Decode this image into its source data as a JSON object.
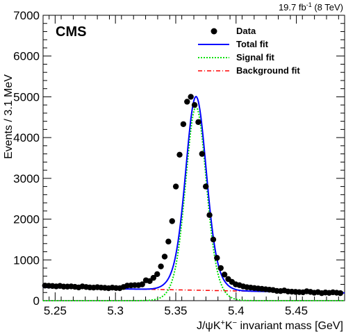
{
  "header": {
    "experiment": "CMS",
    "lumi_value": "19.7 fb",
    "lumi_exp": "-1",
    "lumi_energy": " (8 TeV)"
  },
  "chart_data": {
    "type": "scatter",
    "ylabel": "Events / 3.1 MeV",
    "xlabel": {
      "prefix": "J/ψK",
      "sup1": "+",
      "mid": "K",
      "sup2": "−",
      "suffix": " invariant mass [GeV]"
    },
    "xlim": [
      5.24,
      5.49
    ],
    "ylim": [
      0,
      7000
    ],
    "xticks": [
      5.25,
      5.3,
      5.35,
      5.4,
      5.45
    ],
    "xtick_labels": [
      "5.25",
      "5.3",
      "5.35",
      "5.4",
      "5.45"
    ],
    "yticks": [
      0,
      1000,
      2000,
      3000,
      4000,
      5000,
      6000,
      7000
    ],
    "ytick_labels": [
      "0",
      "1000",
      "2000",
      "3000",
      "4000",
      "5000",
      "6000",
      "7000"
    ],
    "legend": {
      "position": "top-right",
      "entries": [
        {
          "name": "Data",
          "style": "marker",
          "color": "#000000"
        },
        {
          "name": "Total fit",
          "style": "solid",
          "color": "#0000ff"
        },
        {
          "name": "Signal fit",
          "style": "dotted",
          "color": "#00e000"
        },
        {
          "name": "Background fit",
          "style": "dashdot",
          "color": "#ff0000"
        }
      ]
    },
    "data": {
      "x": [
        5.2416,
        5.2447,
        5.2478,
        5.2509,
        5.254,
        5.2571,
        5.2602,
        5.2633,
        5.2664,
        5.2695,
        5.2726,
        5.2757,
        5.2788,
        5.2819,
        5.285,
        5.2881,
        5.2912,
        5.2943,
        5.2974,
        5.3005,
        5.3036,
        5.3067,
        5.3098,
        5.3129,
        5.316,
        5.3191,
        5.3222,
        5.3253,
        5.3284,
        5.3315,
        5.3346,
        5.3377,
        5.3408,
        5.3439,
        5.347,
        5.3501,
        5.3532,
        5.3563,
        5.3594,
        5.3625,
        5.3656,
        5.3687,
        5.3718,
        5.3749,
        5.378,
        5.3811,
        5.3842,
        5.3873,
        5.3904,
        5.3935,
        5.3966,
        5.3997,
        5.4028,
        5.4059,
        5.409,
        5.4121,
        5.4152,
        5.4183,
        5.4214,
        5.4245,
        5.4276,
        5.4307,
        5.4338,
        5.4369,
        5.44,
        5.4431,
        5.4462,
        5.4493,
        5.4524,
        5.4555,
        5.4586,
        5.4617,
        5.4648,
        5.4679,
        5.471,
        5.4741,
        5.4772,
        5.4803,
        5.4834,
        5.4865
      ],
      "y": [
        370,
        365,
        360,
        350,
        362,
        345,
        345,
        350,
        340,
        325,
        350,
        335,
        325,
        320,
        330,
        320,
        315,
        305,
        320,
        310,
        305,
        335,
        370,
        375,
        380,
        380,
        400,
        500,
        480,
        560,
        650,
        840,
        1080,
        1450,
        1950,
        2800,
        3580,
        4330,
        4880,
        5000,
        4800,
        4380,
        3600,
        2800,
        2100,
        1500,
        1050,
        800,
        640,
        530,
        460,
        400,
        380,
        350,
        330,
        320,
        310,
        300,
        290,
        280,
        270,
        260,
        240,
        235,
        250,
        225,
        220,
        215,
        210,
        205,
        230,
        215,
        195,
        210,
        185,
        200,
        190,
        205,
        195,
        185
      ]
    },
    "fit": {
      "signal": {
        "amplitude": 4750,
        "mean": 5.3668,
        "sigma": 0.0078,
        "sigma_wide": 0.0122,
        "fraction_narrow": 0.72
      },
      "background": {
        "value_at_min": 325,
        "value_at_max": 190
      }
    }
  }
}
